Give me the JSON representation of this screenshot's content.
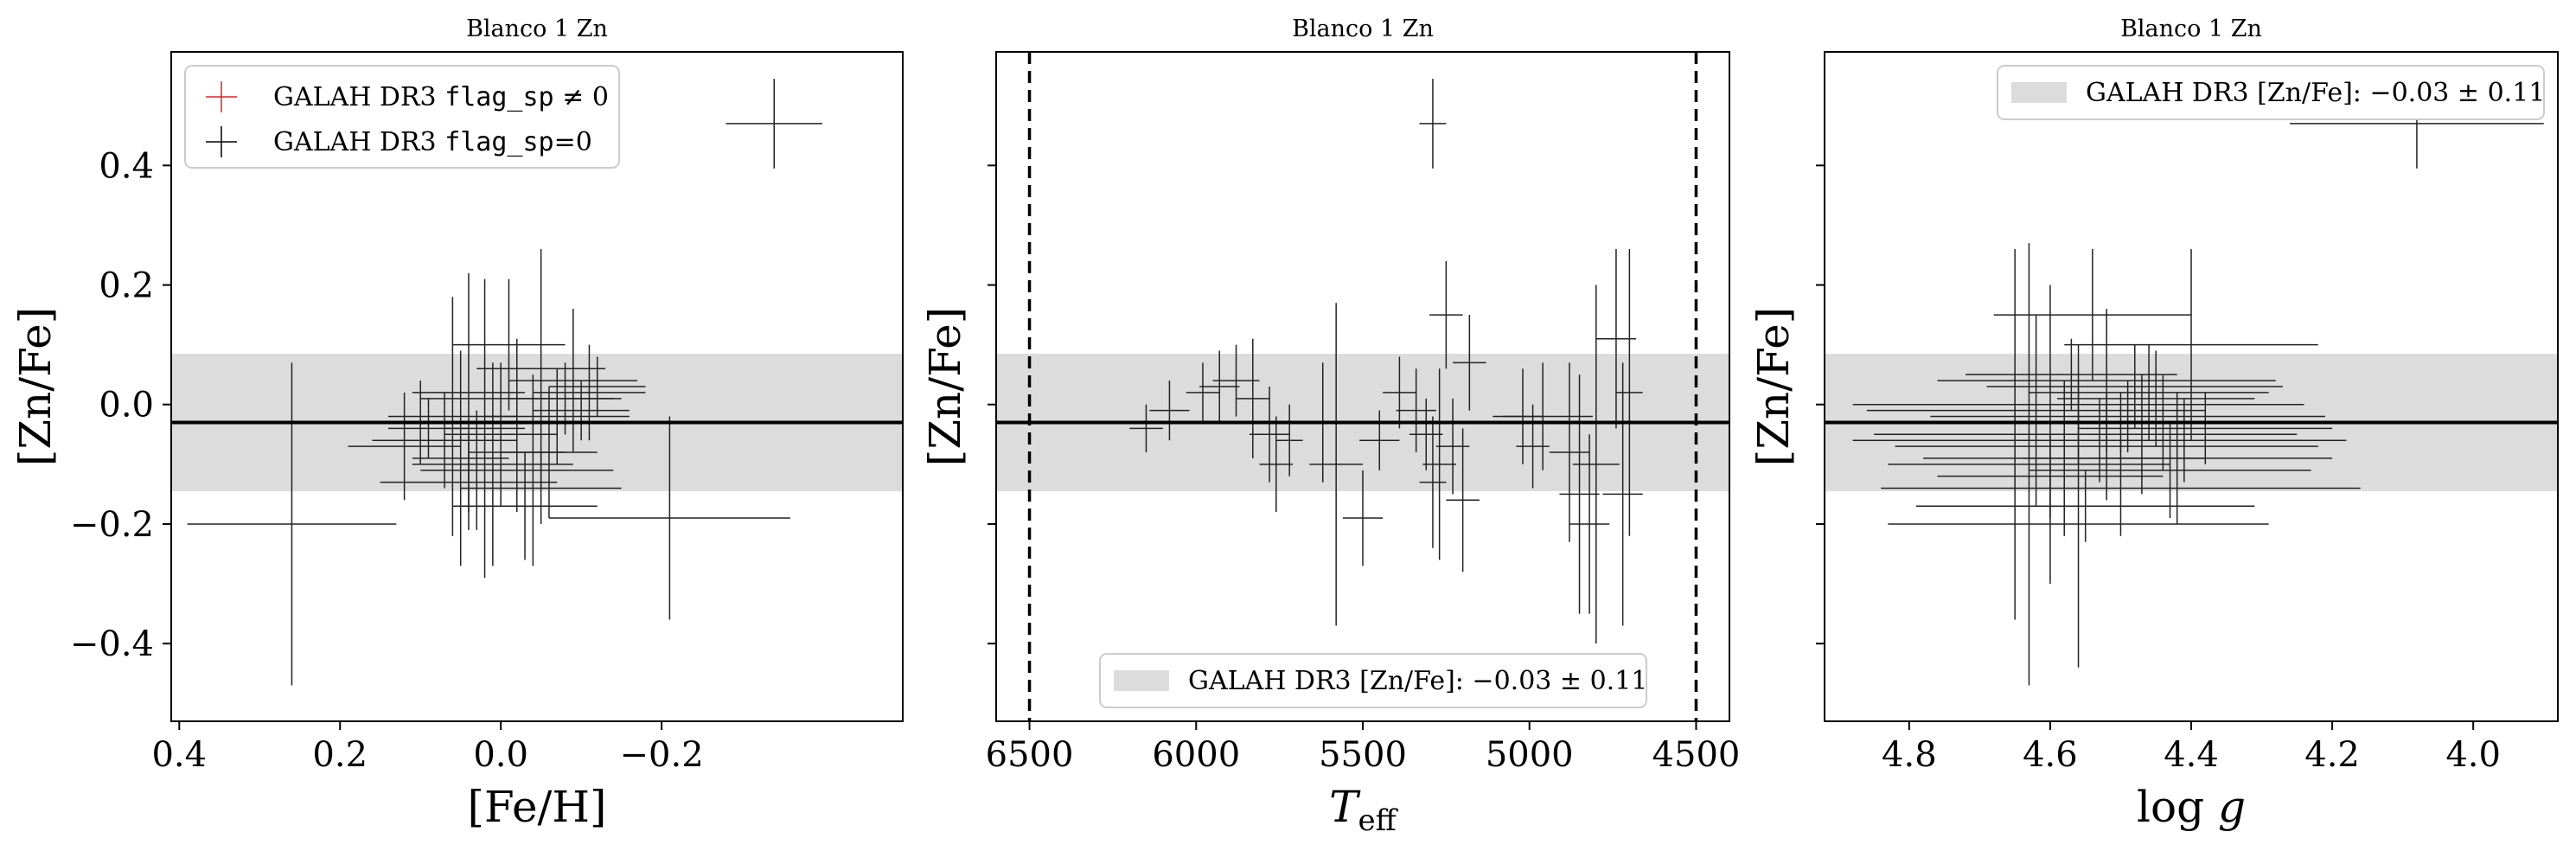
{
  "chart_data": [
    {
      "type": "scatter",
      "title": "Blanco 1 Zn",
      "xlabel": "[Fe/H]",
      "ylabel": "[Zn/Fe]",
      "xlim": [
        0.41,
        -0.5
      ],
      "ylim": [
        -0.53,
        0.59
      ],
      "x_ticks": [
        0.4,
        0.2,
        0.0,
        -0.2
      ],
      "x_tick_labels": [
        "0.4",
        "0.2",
        "0.0",
        "−0.2"
      ],
      "y_ticks": [
        0.4,
        0.2,
        0.0,
        -0.2,
        -0.4
      ],
      "y_tick_labels": [
        "0.4",
        "0.2",
        "0.0",
        "−0.2",
        "−0.4"
      ],
      "band": {
        "center": -0.03,
        "sigma": 0.115,
        "color": "#dcdcdc"
      },
      "hline": -0.03,
      "legend": {
        "position": "top-left",
        "entries": [
          {
            "label_main": "GALAH DR3 ",
            "label_code": "flag_sp",
            "label_tail": " ≠ 0",
            "color": "#d62728"
          },
          {
            "label_main": "GALAH DR3 ",
            "label_code": "flag_sp",
            "label_tail": "=0",
            "color": "#000000"
          }
        ]
      },
      "points": [
        {
          "x": 0.26,
          "y": -0.2,
          "xerr": 0.13,
          "yerr": 0.27
        },
        {
          "x": -0.34,
          "y": 0.47,
          "xerr": 0.06,
          "yerr": 0.075
        },
        {
          "x": -0.21,
          "y": -0.19,
          "xerr": 0.15,
          "yerr": 0.17
        },
        {
          "x": 0.04,
          "y": 0.02,
          "xerr": 0.07,
          "yerr": 0.2
        },
        {
          "x": -0.05,
          "y": 0.06,
          "xerr": 0.08,
          "yerr": 0.2
        },
        {
          "x": -0.01,
          "y": 0.1,
          "xerr": 0.07,
          "yerr": 0.11
        },
        {
          "x": -0.09,
          "y": 0.04,
          "xerr": 0.08,
          "yerr": 0.12
        },
        {
          "x": -0.11,
          "y": 0.02,
          "xerr": 0.07,
          "yerr": 0.08
        },
        {
          "x": 0.02,
          "y": -0.04,
          "xerr": 0.05,
          "yerr": 0.25
        },
        {
          "x": 0.06,
          "y": -0.02,
          "xerr": 0.08,
          "yerr": 0.2
        },
        {
          "x": 0.03,
          "y": -0.11,
          "xerr": 0.07,
          "yerr": 0.1
        },
        {
          "x": -0.02,
          "y": -0.08,
          "xerr": 0.06,
          "yerr": 0.1
        },
        {
          "x": 0.1,
          "y": -0.03,
          "xerr": 0.05,
          "yerr": 0.07
        },
        {
          "x": -0.07,
          "y": -0.02,
          "xerr": 0.09,
          "yerr": 0.08
        },
        {
          "x": 0.0,
          "y": -0.05,
          "xerr": 0.07,
          "yerr": 0.12
        },
        {
          "x": -0.04,
          "y": -0.11,
          "xerr": 0.1,
          "yerr": 0.16
        },
        {
          "x": 0.05,
          "y": -0.09,
          "xerr": 0.06,
          "yerr": 0.18
        },
        {
          "x": -0.12,
          "y": 0.03,
          "xerr": 0.06,
          "yerr": 0.05
        },
        {
          "x": -0.06,
          "y": -0.08,
          "xerr": 0.06,
          "yerr": 0.11
        },
        {
          "x": 0.07,
          "y": -0.06,
          "xerr": 0.09,
          "yerr": 0.08
        },
        {
          "x": -0.02,
          "y": 0.01,
          "xerr": 0.12,
          "yerr": 0.1
        },
        {
          "x": 0.12,
          "y": -0.07,
          "xerr": 0.07,
          "yerr": 0.09
        },
        {
          "x": -0.03,
          "y": -0.17,
          "xerr": 0.09,
          "yerr": 0.09
        },
        {
          "x": 0.01,
          "y": -0.1,
          "xerr": 0.1,
          "yerr": 0.17
        },
        {
          "x": -0.08,
          "y": 0.01,
          "xerr": 0.07,
          "yerr": 0.06
        },
        {
          "x": 0.04,
          "y": -0.13,
          "xerr": 0.11,
          "yerr": 0.08
        },
        {
          "x": -0.05,
          "y": -0.14,
          "xerr": 0.1,
          "yerr": 0.06
        },
        {
          "x": 0.09,
          "y": -0.04,
          "xerr": 0.05,
          "yerr": 0.05
        },
        {
          "x": -0.1,
          "y": -0.01,
          "xerr": 0.06,
          "yerr": 0.05
        }
      ]
    },
    {
      "type": "scatter",
      "title": "Blanco 1 Zn",
      "xlabel": "T_eff",
      "xlabel_main": "T",
      "xlabel_sub": "eff",
      "ylabel": "[Zn/Fe]",
      "xlim": [
        6600,
        4400
      ],
      "ylim": [
        -0.53,
        0.59
      ],
      "x_ticks": [
        6500,
        6000,
        5500,
        5000,
        4500
      ],
      "x_tick_labels": [
        "6500",
        "6000",
        "5500",
        "5000",
        "4500"
      ],
      "y_ticks": [
        0.4,
        0.2,
        0.0,
        -0.2,
        -0.4
      ],
      "band": {
        "center": -0.03,
        "sigma": 0.115,
        "color": "#dcdcdc"
      },
      "hline": -0.03,
      "vlines": [
        6500,
        4500
      ],
      "legend": {
        "position": "bottom-center",
        "label": "GALAH DR3 [Zn/Fe]:  −0.03 ± 0.11"
      },
      "points": [
        {
          "x": 5290,
          "y": 0.47,
          "xerr": 40,
          "yerr": 0.075
        },
        {
          "x": 6150,
          "y": -0.04,
          "xerr": 50,
          "yerr": 0.04
        },
        {
          "x": 6080,
          "y": -0.01,
          "xerr": 60,
          "yerr": 0.05
        },
        {
          "x": 5980,
          "y": 0.02,
          "xerr": 50,
          "yerr": 0.05
        },
        {
          "x": 5930,
          "y": 0.03,
          "xerr": 60,
          "yerr": 0.06
        },
        {
          "x": 5880,
          "y": 0.04,
          "xerr": 70,
          "yerr": 0.06
        },
        {
          "x": 5830,
          "y": 0.01,
          "xerr": 50,
          "yerr": 0.1
        },
        {
          "x": 5780,
          "y": -0.05,
          "xerr": 60,
          "yerr": 0.08
        },
        {
          "x": 5760,
          "y": -0.1,
          "xerr": 50,
          "yerr": 0.08
        },
        {
          "x": 5720,
          "y": -0.06,
          "xerr": 40,
          "yerr": 0.06
        },
        {
          "x": 5620,
          "y": -0.03,
          "xerr": 100,
          "yerr": 0.1
        },
        {
          "x": 5580,
          "y": -0.1,
          "xerr": 80,
          "yerr": 0.27
        },
        {
          "x": 5500,
          "y": -0.19,
          "xerr": 60,
          "yerr": 0.08
        },
        {
          "x": 5450,
          "y": -0.06,
          "xerr": 60,
          "yerr": 0.05
        },
        {
          "x": 5390,
          "y": 0.02,
          "xerr": 50,
          "yerr": 0.06
        },
        {
          "x": 5340,
          "y": -0.01,
          "xerr": 60,
          "yerr": 0.07
        },
        {
          "x": 5310,
          "y": -0.05,
          "xerr": 50,
          "yerr": 0.06
        },
        {
          "x": 5290,
          "y": -0.13,
          "xerr": 40,
          "yerr": 0.11
        },
        {
          "x": 5270,
          "y": -0.1,
          "xerr": 50,
          "yerr": 0.16
        },
        {
          "x": 5250,
          "y": 0.15,
          "xerr": 50,
          "yerr": 0.09
        },
        {
          "x": 5230,
          "y": -0.07,
          "xerr": 50,
          "yerr": 0.08
        },
        {
          "x": 5200,
          "y": -0.16,
          "xerr": 50,
          "yerr": 0.12
        },
        {
          "x": 5180,
          "y": 0.07,
          "xerr": 50,
          "yerr": 0.08
        },
        {
          "x": 5020,
          "y": -0.02,
          "xerr": 60,
          "yerr": 0.08
        },
        {
          "x": 4990,
          "y": -0.07,
          "xerr": 50,
          "yerr": 0.07
        },
        {
          "x": 4960,
          "y": -0.02,
          "xerr": 150,
          "yerr": 0.09
        },
        {
          "x": 4880,
          "y": -0.08,
          "xerr": 60,
          "yerr": 0.15
        },
        {
          "x": 4850,
          "y": -0.15,
          "xerr": 60,
          "yerr": 0.2
        },
        {
          "x": 4820,
          "y": -0.2,
          "xerr": 60,
          "yerr": 0.15
        },
        {
          "x": 4800,
          "y": -0.1,
          "xerr": 70,
          "yerr": 0.3
        },
        {
          "x": 4740,
          "y": 0.11,
          "xerr": 60,
          "yerr": 0.15
        },
        {
          "x": 4720,
          "y": -0.15,
          "xerr": 60,
          "yerr": 0.22
        },
        {
          "x": 4700,
          "y": 0.02,
          "xerr": 40,
          "yerr": 0.24
        }
      ]
    },
    {
      "type": "scatter",
      "title": "Blanco 1 Zn",
      "xlabel": "log g",
      "xlabel_main": "log",
      "xlabel_var": "g",
      "ylabel": "[Zn/Fe]",
      "xlim": [
        4.92,
        3.88
      ],
      "ylim": [
        -0.53,
        0.59
      ],
      "x_ticks": [
        4.8,
        4.6,
        4.4,
        4.2,
        4.0
      ],
      "x_tick_labels": [
        "4.8",
        "4.6",
        "4.4",
        "4.2",
        "4.0"
      ],
      "y_ticks": [
        0.4,
        0.2,
        0.0,
        -0.2,
        -0.4
      ],
      "band": {
        "center": -0.03,
        "sigma": 0.115,
        "color": "#dcdcdc"
      },
      "hline": -0.03,
      "legend": {
        "position": "top-right",
        "label": "GALAH DR3 [Zn/Fe]:  −0.03 ± 0.11"
      },
      "points": [
        {
          "x": 4.08,
          "y": 0.47,
          "xerr": 0.18,
          "yerr": 0.075
        },
        {
          "x": 4.65,
          "y": -0.05,
          "xerr": 0.2,
          "yerr": 0.31
        },
        {
          "x": 4.63,
          "y": -0.1,
          "xerr": 0.2,
          "yerr": 0.37
        },
        {
          "x": 4.56,
          "y": -0.2,
          "xerr": 0.27,
          "yerr": 0.24
        },
        {
          "x": 4.54,
          "y": 0.15,
          "xerr": 0.14,
          "yerr": 0.11
        },
        {
          "x": 4.6,
          "y": -0.05,
          "xerr": 0.25,
          "yerr": 0.25
        },
        {
          "x": 4.52,
          "y": 0.04,
          "xerr": 0.24,
          "yerr": 0.12
        },
        {
          "x": 4.48,
          "y": 0.03,
          "xerr": 0.21,
          "yerr": 0.07
        },
        {
          "x": 4.56,
          "y": 0.0,
          "xerr": 0.32,
          "yerr": 0.1
        },
        {
          "x": 4.5,
          "y": -0.14,
          "xerr": 0.34,
          "yerr": 0.08
        },
        {
          "x": 4.44,
          "y": -0.03,
          "xerr": 0.19,
          "yerr": 0.08
        },
        {
          "x": 4.4,
          "y": 0.1,
          "xerr": 0.18,
          "yerr": 0.16
        },
        {
          "x": 4.58,
          "y": -0.09,
          "xerr": 0.2,
          "yerr": 0.13
        },
        {
          "x": 4.52,
          "y": -0.07,
          "xerr": 0.3,
          "yerr": 0.09
        },
        {
          "x": 4.47,
          "y": -0.05,
          "xerr": 0.22,
          "yerr": 0.1
        },
        {
          "x": 4.62,
          "y": -0.01,
          "xerr": 0.24,
          "yerr": 0.16
        },
        {
          "x": 4.55,
          "y": -0.17,
          "xerr": 0.24,
          "yerr": 0.06
        },
        {
          "x": 4.49,
          "y": -0.02,
          "xerr": 0.28,
          "yerr": 0.06
        },
        {
          "x": 4.43,
          "y": -0.11,
          "xerr": 0.2,
          "yerr": 0.08
        },
        {
          "x": 4.38,
          "y": -0.04,
          "xerr": 0.18,
          "yerr": 0.06
        },
        {
          "x": 4.53,
          "y": -0.06,
          "xerr": 0.35,
          "yerr": 0.07
        },
        {
          "x": 4.46,
          "y": 0.02,
          "xerr": 0.17,
          "yerr": 0.08
        },
        {
          "x": 4.6,
          "y": -0.12,
          "xerr": 0.16,
          "yerr": 0.07
        },
        {
          "x": 4.42,
          "y": -0.09,
          "xerr": 0.22,
          "yerr": 0.11
        },
        {
          "x": 4.57,
          "y": 0.05,
          "xerr": 0.15,
          "yerr": 0.06
        },
        {
          "x": 4.5,
          "y": -0.03,
          "xerr": 0.26,
          "yerr": 0.05
        },
        {
          "x": 4.45,
          "y": 0.01,
          "xerr": 0.14,
          "yerr": 0.08
        },
        {
          "x": 4.41,
          "y": -0.06,
          "xerr": 0.2,
          "yerr": 0.07
        }
      ]
    }
  ]
}
